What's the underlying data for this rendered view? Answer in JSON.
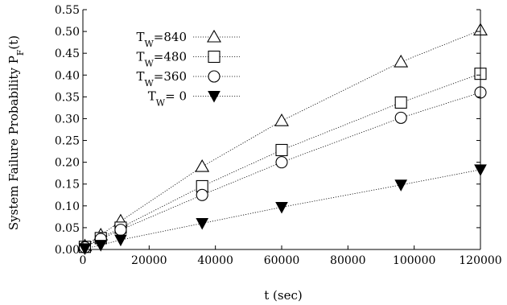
{
  "chart_data": {
    "type": "scatter",
    "xlabel": "t (sec)",
    "ylabel": "System Failure Probability P",
    "ylabel_sub": "F",
    "ylabel_tail": "(t)",
    "xlim": [
      0,
      120000
    ],
    "ylim": [
      0,
      0.55
    ],
    "xticks": [
      0,
      20000,
      40000,
      60000,
      80000,
      100000,
      120000
    ],
    "xtick_labels": [
      "0",
      "20000",
      "40000",
      "60000",
      "80000",
      "100000",
      "120000"
    ],
    "yticks": [
      0,
      0.05,
      0.1,
      0.15,
      0.2,
      0.25,
      0.3,
      0.35,
      0.4,
      0.45,
      0.5,
      0.55
    ],
    "ytick_labels": [
      "0.00",
      "0.05",
      "0.10",
      "0.15",
      "0.20",
      "0.25",
      "0.30",
      "0.35",
      "0.40",
      "0.45",
      "0.50",
      "0.55"
    ],
    "grid": false,
    "legend_position": "top-left",
    "series": [
      {
        "legend_main": "T",
        "legend_sub": "W",
        "legend_value": "=840",
        "marker": "triangle-up-open",
        "x": [
          600,
          5400,
          11400,
          36000,
          60000,
          96000,
          120000
        ],
        "y": [
          0.008,
          0.033,
          0.065,
          0.19,
          0.295,
          0.43,
          0.503
        ]
      },
      {
        "legend_main": "T",
        "legend_sub": "W",
        "legend_value": "=480",
        "marker": "square-open",
        "x": [
          600,
          5400,
          11400,
          36000,
          60000,
          96000,
          120000
        ],
        "y": [
          0.006,
          0.026,
          0.05,
          0.145,
          0.228,
          0.337,
          0.403
        ]
      },
      {
        "legend_main": "T",
        "legend_sub": "W",
        "legend_value": "=360",
        "marker": "circle-open",
        "x": [
          600,
          5400,
          11400,
          36000,
          60000,
          96000,
          120000
        ],
        "y": [
          0.005,
          0.024,
          0.045,
          0.125,
          0.2,
          0.302,
          0.36
        ]
      },
      {
        "legend_main": "T",
        "legend_sub": "W",
        "legend_value": "=  0",
        "marker": "triangle-down-filled",
        "x": [
          600,
          5400,
          11400,
          36000,
          60000,
          96000,
          120000
        ],
        "y": [
          0.002,
          0.01,
          0.022,
          0.06,
          0.097,
          0.148,
          0.183
        ]
      }
    ]
  }
}
